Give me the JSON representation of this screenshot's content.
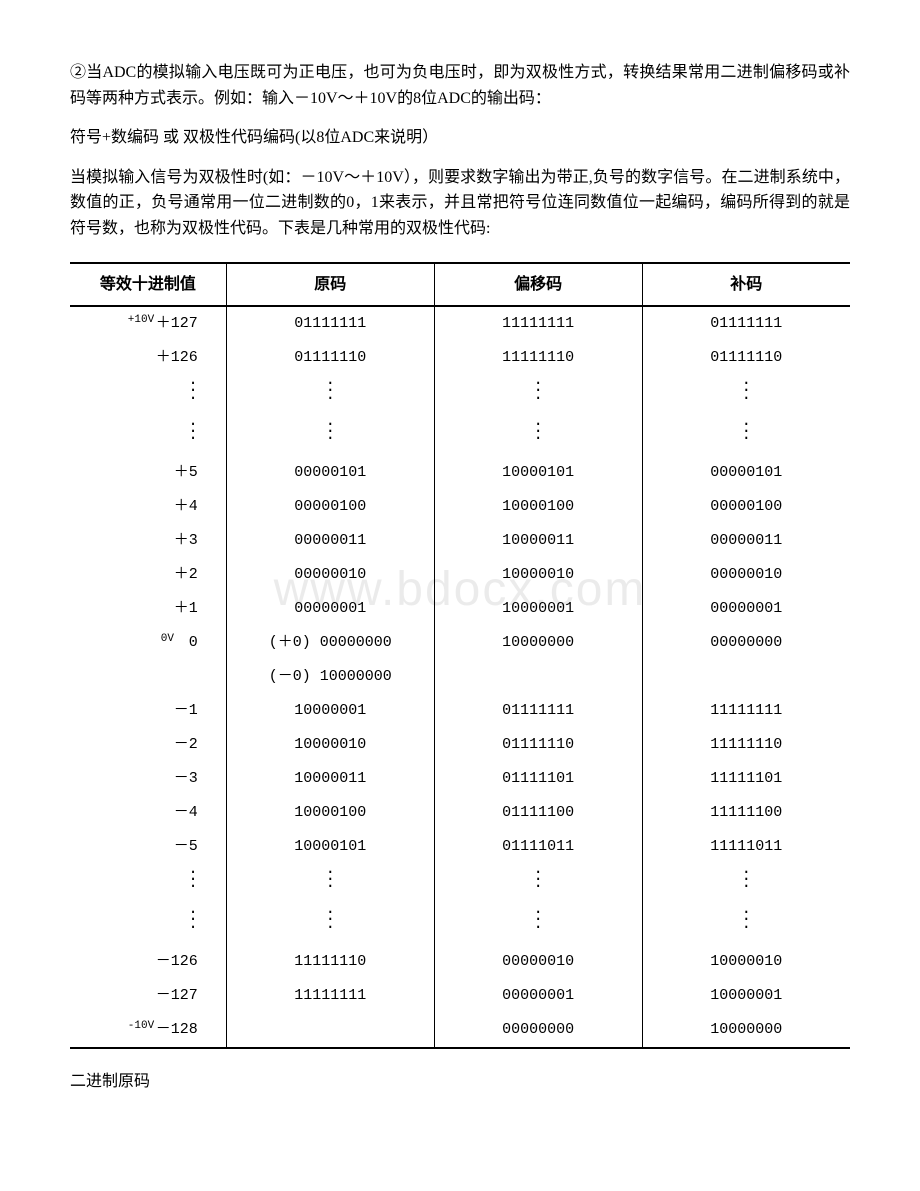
{
  "paragraphs": {
    "p1": "②当ADC的模拟输入电压既可为正电压，也可为负电压时，即为双极性方式，转换结果常用二进制偏移码或补码等两种方式表示。例如：输入－10V～＋10V的8位ADC的输出码：",
    "p2": "符号+数编码 或 双极性代码编码(以8位ADC来说明）",
    "p3": "当模拟输入信号为双极性时(如：－10V～＋10V），则要求数字输出为带正,负号的数字信号。在二进制系统中，数值的正，负号通常用一位二进制数的0，1来表示，并且常把符号位连同数值位一起编码，编码所得到的就是符号数，也称为双极性代码。下表是几种常用的双极性代码:",
    "p4": "二进制原码"
  },
  "watermark": "www.bdocx.com",
  "table": {
    "headers": [
      "等效十进制值",
      "原码",
      "偏移码",
      "补码"
    ],
    "rows": [
      {
        "sup": "+10V",
        "val": "＋127",
        "orig": "01111111",
        "off": "11111111",
        "comp": "01111111"
      },
      {
        "sup": "",
        "val": "＋126",
        "orig": "01111110",
        "off": "11111110",
        "comp": "01111110"
      },
      {
        "sup": "",
        "val": "",
        "orig": "",
        "off": "",
        "comp": "",
        "dots": true
      },
      {
        "sup": "",
        "val": "",
        "orig": "",
        "off": "",
        "comp": "",
        "dots": true
      },
      {
        "sup": "",
        "val": "＋5",
        "orig": "00000101",
        "off": "10000101",
        "comp": "00000101"
      },
      {
        "sup": "",
        "val": "＋4",
        "orig": "00000100",
        "off": "10000100",
        "comp": "00000100"
      },
      {
        "sup": "",
        "val": "＋3",
        "orig": "00000011",
        "off": "10000011",
        "comp": "00000011"
      },
      {
        "sup": "",
        "val": "＋2",
        "orig": "00000010",
        "off": "10000010",
        "comp": "00000010"
      },
      {
        "sup": "",
        "val": "＋1",
        "orig": "00000001",
        "off": "10000001",
        "comp": "00000001"
      },
      {
        "sup": "0V",
        "val": "0",
        "orig": "(＋0) 00000000",
        "off": "10000000",
        "comp": "00000000"
      },
      {
        "sup": "",
        "val": "",
        "orig": "(－0) 10000000",
        "off": "",
        "comp": ""
      },
      {
        "sup": "",
        "val": "－1",
        "orig": "10000001",
        "off": "01111111",
        "comp": "11111111"
      },
      {
        "sup": "",
        "val": "－2",
        "orig": "10000010",
        "off": "01111110",
        "comp": "11111110"
      },
      {
        "sup": "",
        "val": "－3",
        "orig": "10000011",
        "off": "01111101",
        "comp": "11111101"
      },
      {
        "sup": "",
        "val": "－4",
        "orig": "10000100",
        "off": "01111100",
        "comp": "11111100"
      },
      {
        "sup": "",
        "val": "－5",
        "orig": "10000101",
        "off": "01111011",
        "comp": "11111011"
      },
      {
        "sup": "",
        "val": "",
        "orig": "",
        "off": "",
        "comp": "",
        "dots": true
      },
      {
        "sup": "",
        "val": "",
        "orig": "",
        "off": "",
        "comp": "",
        "dots": true
      },
      {
        "sup": "",
        "val": "－126",
        "orig": "11111110",
        "off": "00000010",
        "comp": "10000010"
      },
      {
        "sup": "",
        "val": "－127",
        "orig": "11111111",
        "off": "00000001",
        "comp": "10000001"
      },
      {
        "sup": "-10V",
        "val": "－128",
        "orig": "",
        "off": "00000000",
        "comp": "10000000",
        "last": true
      }
    ]
  }
}
